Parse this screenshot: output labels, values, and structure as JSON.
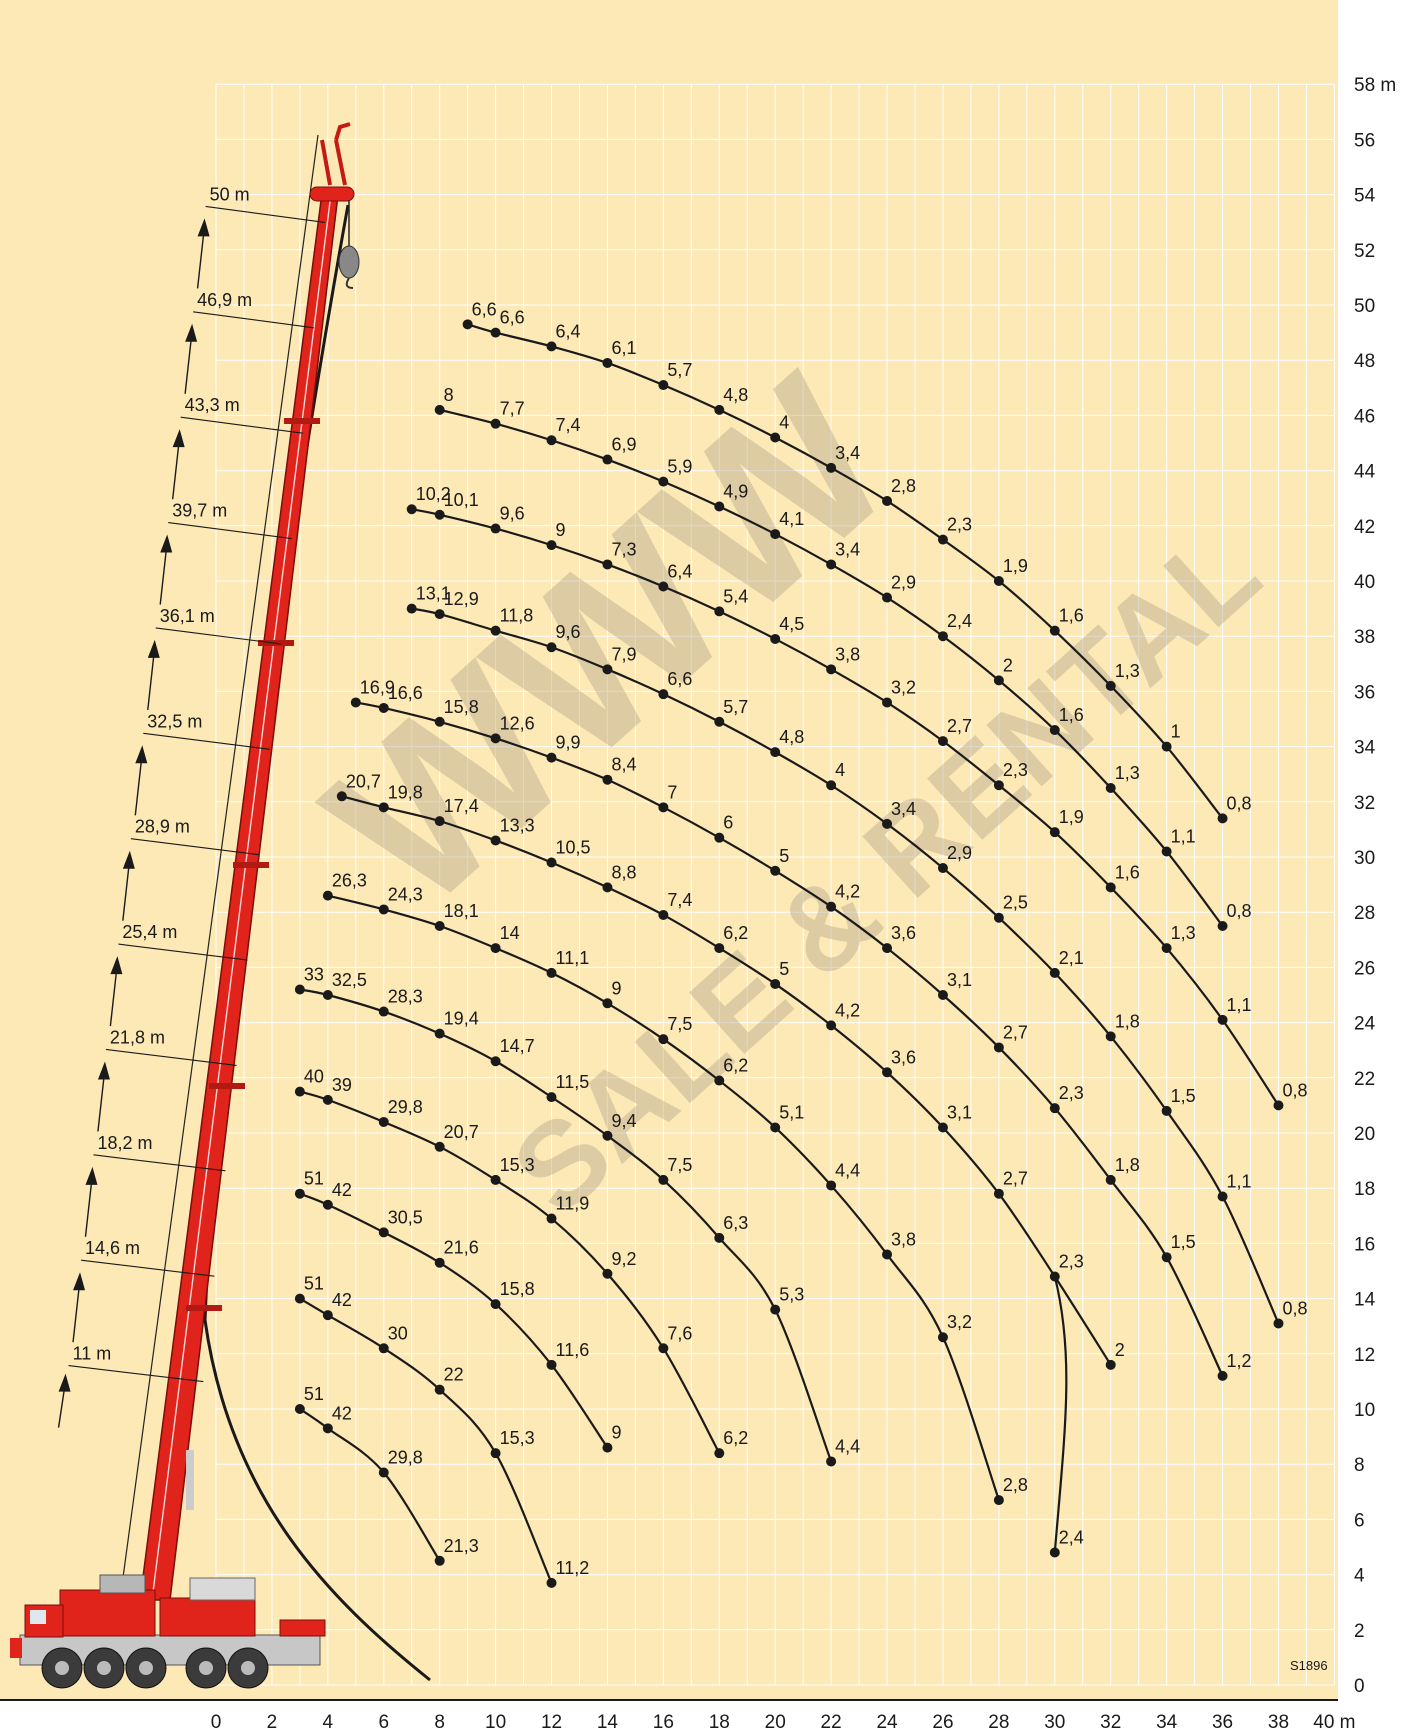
{
  "chart_data": {
    "type": "line",
    "x_unit": "m",
    "y_unit": "m",
    "xlim": [
      0,
      40
    ],
    "ylim": [
      0,
      58
    ],
    "grid": true,
    "x_ticks": [
      "0",
      "2",
      "4",
      "6",
      "8",
      "10",
      "12",
      "14",
      "16",
      "18",
      "20",
      "22",
      "24",
      "26",
      "28",
      "30",
      "32",
      "34",
      "36",
      "38",
      "40 m"
    ],
    "y_ticks": [
      "0",
      "2",
      "4",
      "6",
      "8",
      "10",
      "12",
      "14",
      "16",
      "18",
      "20",
      "22",
      "24",
      "26",
      "28",
      "30",
      "32",
      "34",
      "36",
      "38",
      "40",
      "42",
      "44",
      "46",
      "48",
      "50",
      "52",
      "54",
      "56",
      "58 m"
    ],
    "boom_lengths": [
      "11 m",
      "14,6 m",
      "18,2 m",
      "21,8 m",
      "25,4 m",
      "28,9 m",
      "32,5 m",
      "36,1 m",
      "39,7 m",
      "43,3 m",
      "46,9 m",
      "50 m"
    ],
    "code": "S1896",
    "watermark": {
      "line1": "WWW",
      "line2": "SALE & RENTAL"
    },
    "series": [
      {
        "points": [
          [
            3,
            10
          ],
          [
            4,
            9.3
          ],
          [
            6,
            7.7
          ],
          [
            8,
            4.5
          ]
        ],
        "labels": [
          "51",
          "42",
          "29,8",
          "21,3"
        ]
      },
      {
        "points": [
          [
            3,
            14
          ],
          [
            4,
            13.4
          ],
          [
            6,
            12.2
          ],
          [
            8,
            10.7
          ],
          [
            10,
            8.4
          ],
          [
            12,
            3.7
          ]
        ],
        "labels": [
          "51",
          "42",
          "30",
          "22",
          "15,3",
          "11,2"
        ]
      },
      {
        "points": [
          [
            3,
            17.8
          ],
          [
            4,
            17.4
          ],
          [
            6,
            16.4
          ],
          [
            8,
            15.3
          ],
          [
            10,
            13.8
          ],
          [
            12,
            11.6
          ],
          [
            14,
            8.6
          ]
        ],
        "labels": [
          "51",
          "42",
          "30,5",
          "21,6",
          "15,8",
          "11,6",
          "9"
        ]
      },
      {
        "points": [
          [
            3,
            21.5
          ],
          [
            4,
            21.2
          ],
          [
            6,
            20.4
          ],
          [
            8,
            19.5
          ],
          [
            10,
            18.3
          ],
          [
            12,
            16.9
          ],
          [
            14,
            14.9
          ],
          [
            16,
            12.2
          ],
          [
            18,
            8.4
          ]
        ],
        "labels": [
          "40",
          "39",
          "29,8",
          "20,7",
          "15,3",
          "11,9",
          "9,2",
          "7,6",
          "6,2"
        ]
      },
      {
        "points": [
          [
            3,
            25.2
          ],
          [
            4,
            25
          ],
          [
            6,
            24.4
          ],
          [
            8,
            23.6
          ],
          [
            10,
            22.6
          ],
          [
            12,
            21.3
          ],
          [
            14,
            19.9
          ],
          [
            16,
            18.3
          ],
          [
            18,
            16.2
          ],
          [
            20,
            13.6
          ],
          [
            22,
            8.1
          ]
        ],
        "labels": [
          "33",
          "32,5",
          "28,3",
          "19,4",
          "14,7",
          "11,5",
          "9,4",
          "7,5",
          "6,3",
          "5,3",
          "4,4"
        ]
      },
      {
        "points": [
          [
            4,
            28.6
          ],
          [
            6,
            28.1
          ],
          [
            8,
            27.5
          ],
          [
            10,
            26.7
          ],
          [
            12,
            25.8
          ],
          [
            14,
            24.7
          ],
          [
            16,
            23.4
          ],
          [
            18,
            21.9
          ],
          [
            20,
            20.2
          ],
          [
            22,
            18.1
          ],
          [
            24,
            15.6
          ],
          [
            26,
            12.6
          ],
          [
            28,
            6.7
          ]
        ],
        "labels": [
          "26,3",
          "24,3",
          "18,1",
          "14",
          "11,1",
          "9",
          "7,5",
          "6,2",
          "5,1",
          "4,4",
          "3,8",
          "3,2",
          "2,8"
        ]
      },
      {
        "points": [
          [
            4.5,
            32.2
          ],
          [
            6,
            31.8
          ],
          [
            8,
            31.3
          ],
          [
            10,
            30.6
          ],
          [
            12,
            29.8
          ],
          [
            14,
            28.9
          ],
          [
            16,
            27.9
          ],
          [
            18,
            26.7
          ],
          [
            20,
            25.4
          ],
          [
            22,
            23.9
          ],
          [
            24,
            22.2
          ],
          [
            26,
            20.2
          ],
          [
            28,
            17.8
          ],
          [
            30,
            14.8
          ],
          [
            32,
            11.6
          ],
          [
            30,
            4.8
          ]
        ],
        "labels": [
          "20,7",
          "19,8",
          "17,4",
          "13,3",
          "10,5",
          "8,8",
          "7,4",
          "6,2",
          "5",
          "4,2",
          "3,6",
          "3,1",
          "2,7",
          "2,3",
          "2",
          "2,4"
        ]
      },
      {
        "points": [
          [
            5,
            35.6
          ],
          [
            6,
            35.4
          ],
          [
            8,
            34.9
          ],
          [
            10,
            34.3
          ],
          [
            12,
            33.6
          ],
          [
            14,
            32.8
          ],
          [
            16,
            31.8
          ],
          [
            18,
            30.7
          ],
          [
            20,
            29.5
          ],
          [
            22,
            28.2
          ],
          [
            24,
            26.7
          ],
          [
            26,
            25
          ],
          [
            28,
            23.1
          ],
          [
            30,
            20.9
          ],
          [
            32,
            18.3
          ],
          [
            34,
            15.5
          ],
          [
            36,
            11.2
          ]
        ],
        "labels": [
          "16,9",
          "16,6",
          "15,8",
          "12,6",
          "9,9",
          "8,4",
          "7",
          "6",
          "5",
          "4,2",
          "3,6",
          "3,1",
          "2,7",
          "2,3",
          "1,8",
          "1,5",
          "1,2"
        ]
      },
      {
        "points": [
          [
            7,
            39
          ],
          [
            8,
            38.8
          ],
          [
            10,
            38.2
          ],
          [
            12,
            37.6
          ],
          [
            14,
            36.8
          ],
          [
            16,
            35.9
          ],
          [
            18,
            34.9
          ],
          [
            20,
            33.8
          ],
          [
            22,
            32.6
          ],
          [
            24,
            31.2
          ],
          [
            26,
            29.6
          ],
          [
            28,
            27.8
          ],
          [
            30,
            25.8
          ],
          [
            32,
            23.5
          ],
          [
            34,
            20.8
          ],
          [
            36,
            17.7
          ],
          [
            38,
            13.1
          ]
        ],
        "labels": [
          "13,1",
          "12,9",
          "11,8",
          "9,6",
          "7,9",
          "6,6",
          "5,7",
          "4,8",
          "4",
          "3,4",
          "2,9",
          "2,5",
          "2,1",
          "1,8",
          "1,5",
          "1,1",
          "0,8"
        ]
      },
      {
        "points": [
          [
            7,
            42.6
          ],
          [
            8,
            42.4
          ],
          [
            10,
            41.9
          ],
          [
            12,
            41.3
          ],
          [
            14,
            40.6
          ],
          [
            16,
            39.8
          ],
          [
            18,
            38.9
          ],
          [
            20,
            37.9
          ],
          [
            22,
            36.8
          ],
          [
            24,
            35.6
          ],
          [
            26,
            34.2
          ],
          [
            28,
            32.6
          ],
          [
            30,
            30.9
          ],
          [
            32,
            28.9
          ],
          [
            34,
            26.7
          ],
          [
            36,
            24.1
          ],
          [
            38,
            21
          ]
        ],
        "labels": [
          "10,2",
          "10,1",
          "9,6",
          "9",
          "7,3",
          "6,4",
          "5,4",
          "4,5",
          "3,8",
          "3,2",
          "2,7",
          "2,3",
          "1,9",
          "1,6",
          "1,3",
          "1,1",
          "0,8"
        ]
      },
      {
        "points": [
          [
            8,
            46.2
          ],
          [
            10,
            45.7
          ],
          [
            12,
            45.1
          ],
          [
            14,
            44.4
          ],
          [
            16,
            43.6
          ],
          [
            18,
            42.7
          ],
          [
            20,
            41.7
          ],
          [
            22,
            40.6
          ],
          [
            24,
            39.4
          ],
          [
            26,
            38
          ],
          [
            28,
            36.4
          ],
          [
            30,
            34.6
          ],
          [
            32,
            32.5
          ],
          [
            34,
            30.2
          ],
          [
            36,
            27.5
          ]
        ],
        "labels": [
          "8",
          "7,7",
          "7,4",
          "6,9",
          "5,9",
          "4,9",
          "4,1",
          "3,4",
          "2,9",
          "2,4",
          "2",
          "1,6",
          "1,3",
          "1,1",
          "0,8"
        ]
      },
      {
        "points": [
          [
            9,
            49.3
          ],
          [
            10,
            49
          ],
          [
            12,
            48.5
          ],
          [
            14,
            47.9
          ],
          [
            16,
            47.1
          ],
          [
            18,
            46.2
          ],
          [
            20,
            45.2
          ],
          [
            22,
            44.1
          ],
          [
            24,
            42.9
          ],
          [
            26,
            41.5
          ],
          [
            28,
            40
          ],
          [
            30,
            38.2
          ],
          [
            32,
            36.2
          ],
          [
            34,
            34
          ],
          [
            36,
            31.4
          ]
        ],
        "labels": [
          "6,6",
          "6,6",
          "6,4",
          "6,1",
          "5,7",
          "4,8",
          "4",
          "3,4",
          "2,8",
          "2,3",
          "1,9",
          "1,6",
          "1,3",
          "1",
          "0,8"
        ]
      }
    ]
  }
}
